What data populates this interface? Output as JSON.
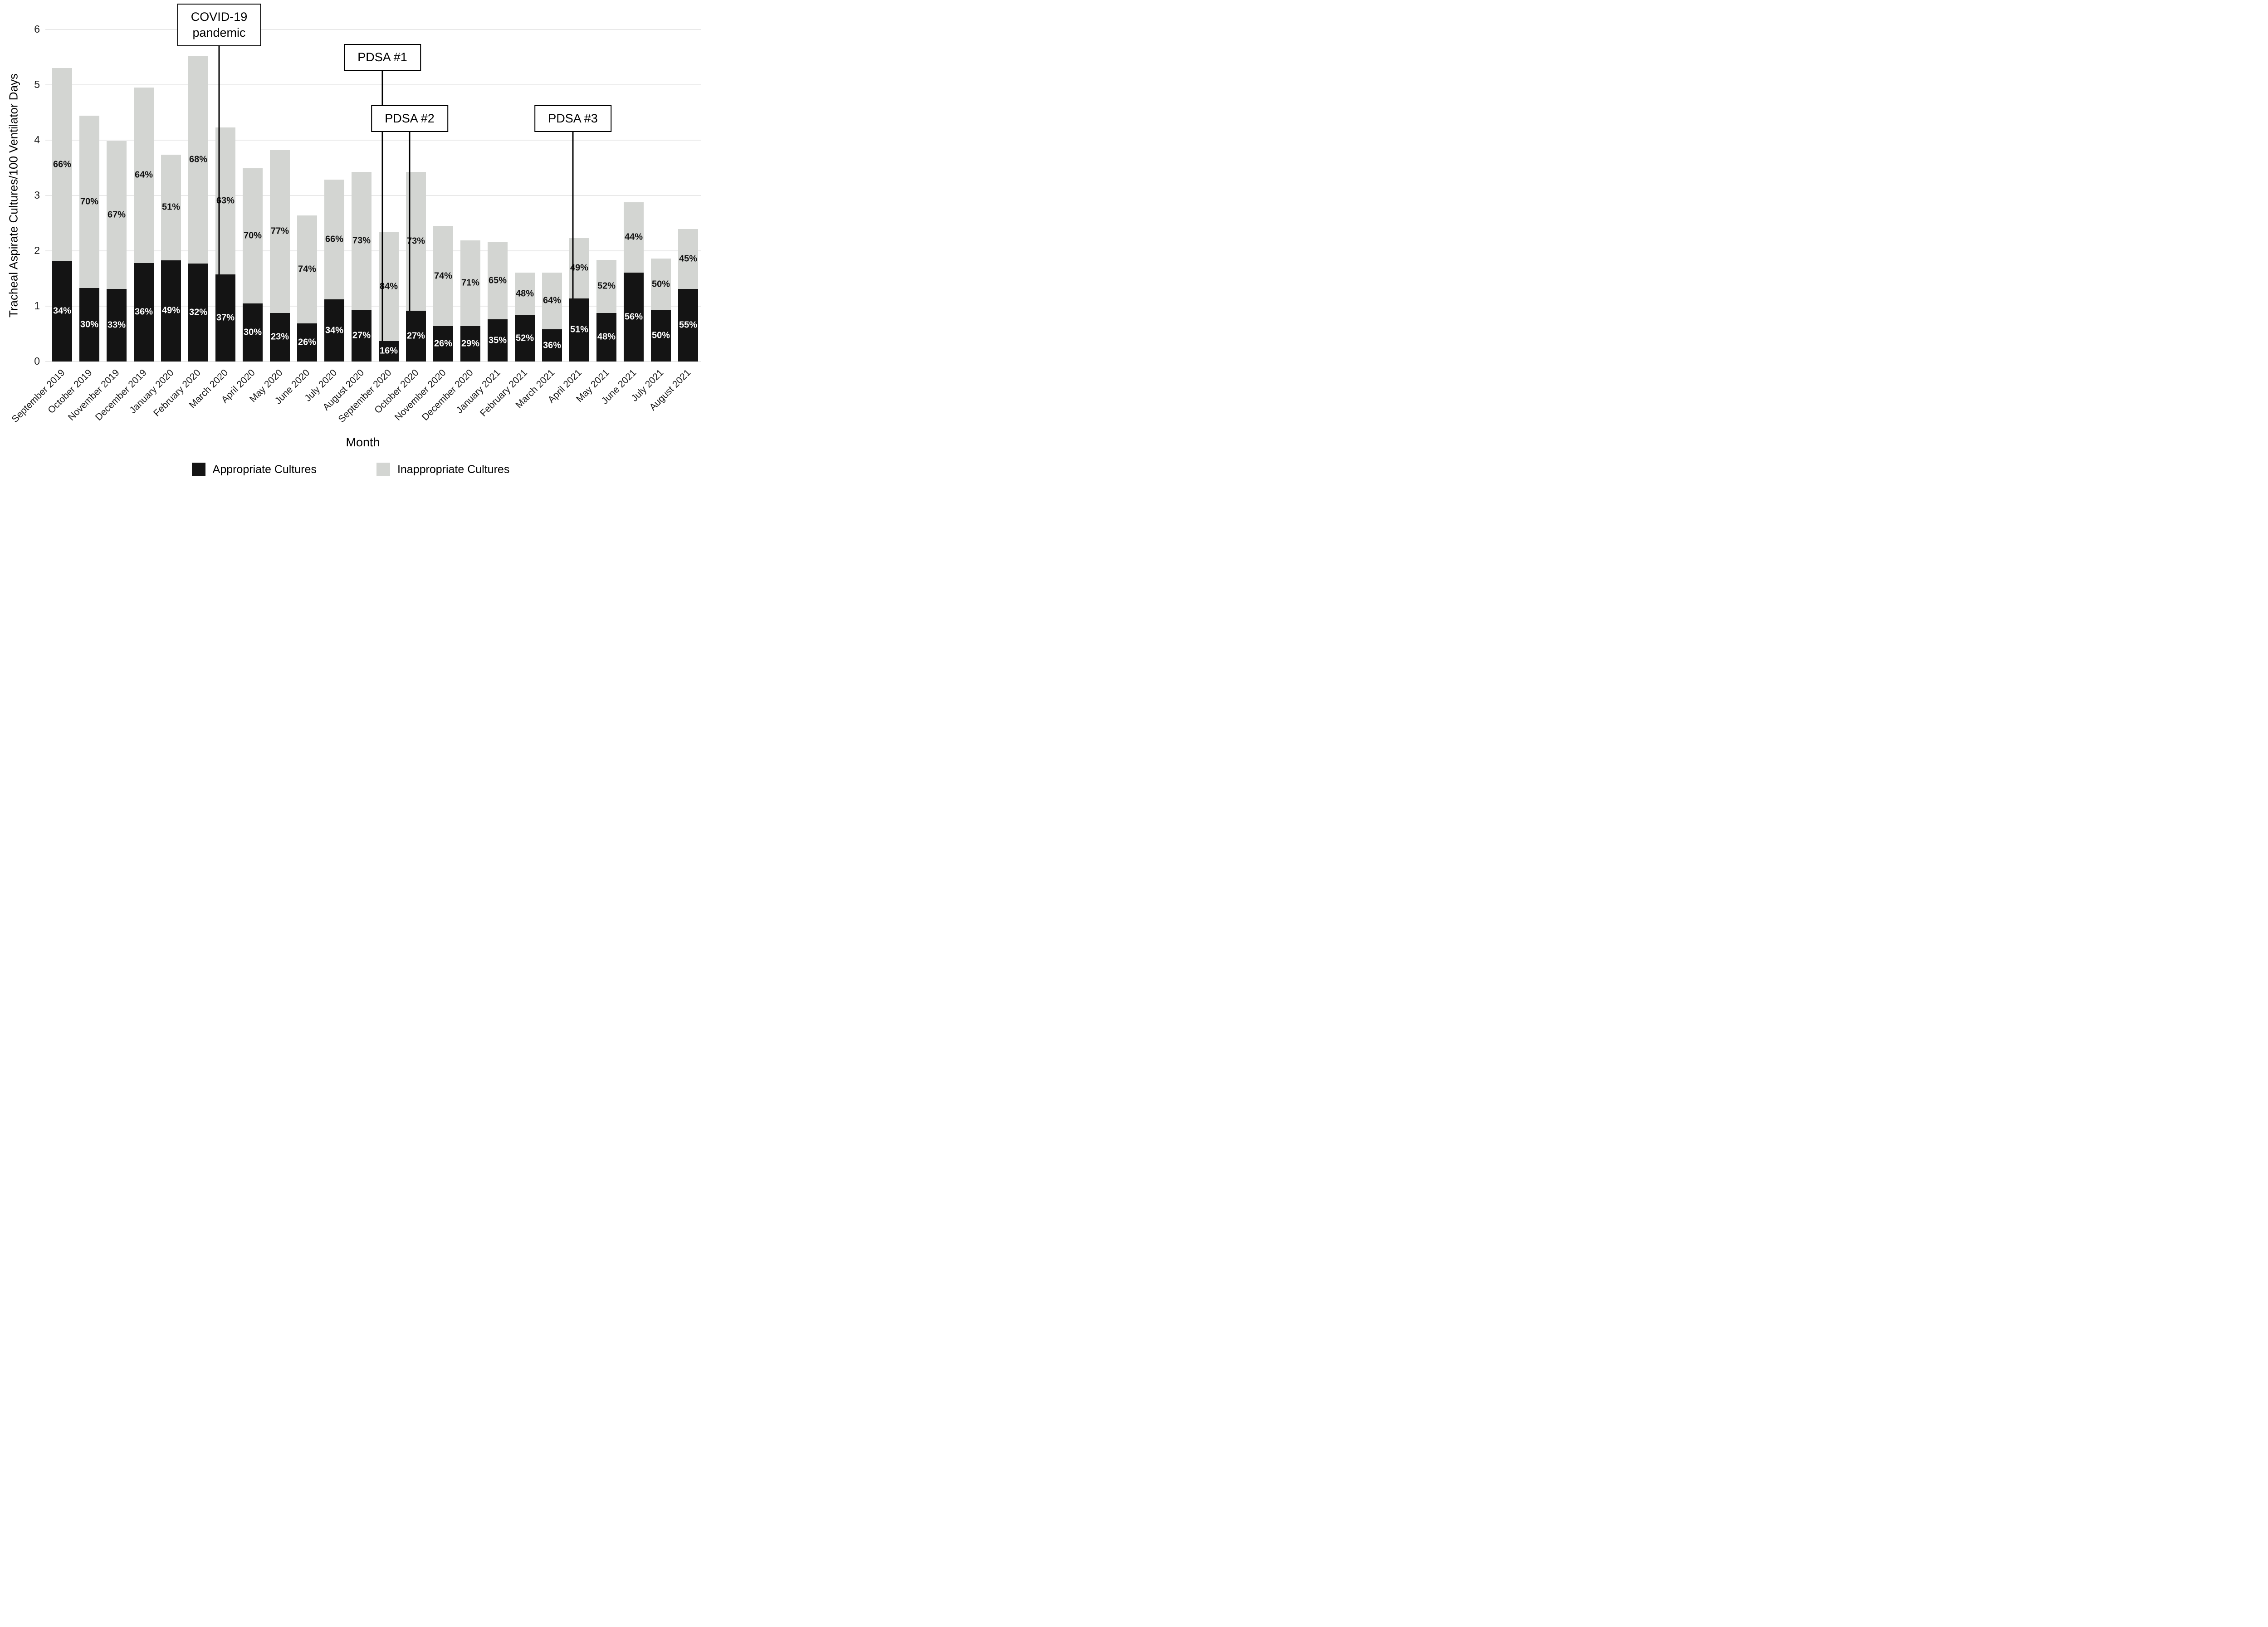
{
  "chart_data": {
    "type": "bar",
    "stacked": true,
    "title": "",
    "xlabel": "Month",
    "ylabel": "Tracheal Aspirate Cultures/100 Ventilator Days",
    "ylim": [
      0,
      6
    ],
    "yticks": [
      0,
      1,
      2,
      3,
      4,
      5,
      6
    ],
    "grid": "horizontal-light",
    "legend_position": "bottom",
    "colors": {
      "appropriate": "#141414",
      "inappropriate": "#d3d5d2",
      "annotation_line": "#000000",
      "gridline": "#e9e9e9"
    },
    "categories": [
      "September 2019",
      "October 2019",
      "November 2019",
      "December 2019",
      "January 2020",
      "February 2020",
      "March 2020",
      "April 2020",
      "May 2020",
      "June 2020",
      "July 2020",
      "August 2020",
      "September 2020",
      "October 2020",
      "November 2020",
      "December 2020",
      "January 2021",
      "February 2021",
      "March 2021",
      "April 2021",
      "May 2021",
      "June 2021",
      "July 2021",
      "August 2021"
    ],
    "series": [
      {
        "name": "Appropriate Cultures",
        "color": "#141414",
        "label_color": "#ffffff",
        "values": [
          1.82,
          1.33,
          1.31,
          1.78,
          1.83,
          1.77,
          1.57,
          1.05,
          0.88,
          0.69,
          1.12,
          0.93,
          0.37,
          0.92,
          0.64,
          0.64,
          0.76,
          0.84,
          0.58,
          1.14,
          0.88,
          1.61,
          0.93,
          1.31
        ],
        "labels": [
          "34%",
          "30%",
          "33%",
          "36%",
          "49%",
          "32%",
          "37%",
          "30%",
          "23%",
          "26%",
          "34%",
          "27%",
          "16%",
          "27%",
          "26%",
          "29%",
          "35%",
          "52%",
          "36%",
          "51%",
          "48%",
          "56%",
          "50%",
          "55%"
        ]
      },
      {
        "name": "Inappropriate Cultures",
        "color": "#d3d5d2",
        "label_color": "#111111",
        "values": [
          3.48,
          3.11,
          2.67,
          3.17,
          1.91,
          3.75,
          2.66,
          2.44,
          2.94,
          1.95,
          2.17,
          2.5,
          1.97,
          2.51,
          1.81,
          1.55,
          1.4,
          0.77,
          1.03,
          1.09,
          0.96,
          1.27,
          0.93,
          1.08
        ],
        "labels": [
          "66%",
          "70%",
          "67%",
          "64%",
          "51%",
          "68%",
          "63%",
          "70%",
          "77%",
          "74%",
          "66%",
          "73%",
          "84%",
          "73%",
          "74%",
          "71%",
          "65%",
          "48%",
          "64%",
          "49%",
          "52%",
          "44%",
          "50%",
          "45%"
        ]
      }
    ],
    "annotations": [
      {
        "text": "COVID-19\npandemic",
        "month": "March 2020",
        "month_index": 6,
        "box_top": 8
      },
      {
        "text": "PDSA #1",
        "month": "September 2020",
        "month_index": 12,
        "box_top": 97
      },
      {
        "text": "PDSA #2",
        "month": "October 2020",
        "month_index": 13,
        "box_top": 232
      },
      {
        "text": "PDSA #3",
        "month": "April 2021",
        "month_index": 19,
        "box_top": 232
      }
    ]
  }
}
